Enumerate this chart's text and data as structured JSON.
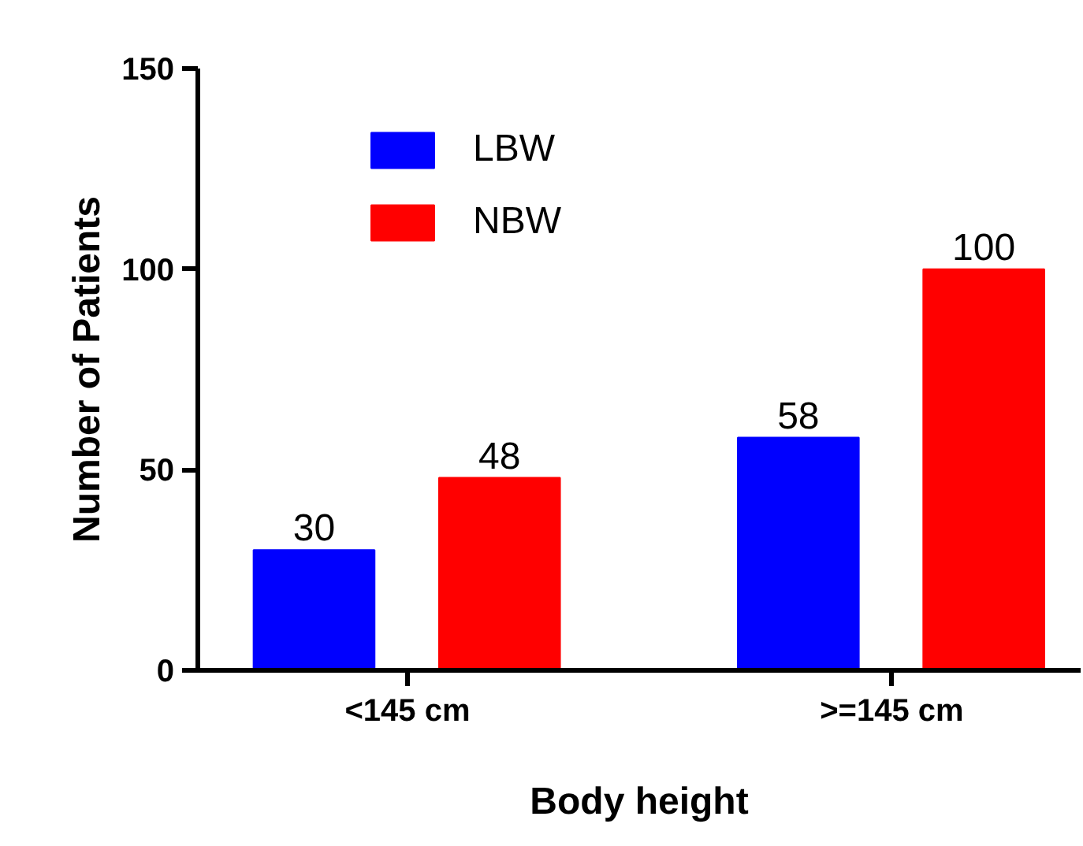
{
  "chart_data": {
    "type": "bar",
    "xlabel": "Body height",
    "ylabel": "Number of Patients",
    "categories": [
      "<145 cm",
      ">=145 cm"
    ],
    "series": [
      {
        "name": "LBW",
        "color": "#0000ff",
        "values": [
          30,
          58
        ]
      },
      {
        "name": "NBW",
        "color": "#ff0000",
        "values": [
          48,
          100
        ]
      }
    ],
    "ylim": [
      0,
      150
    ],
    "yticks": [
      0,
      50,
      100,
      150
    ],
    "data_labels": true,
    "legend": "top",
    "grid": false
  }
}
